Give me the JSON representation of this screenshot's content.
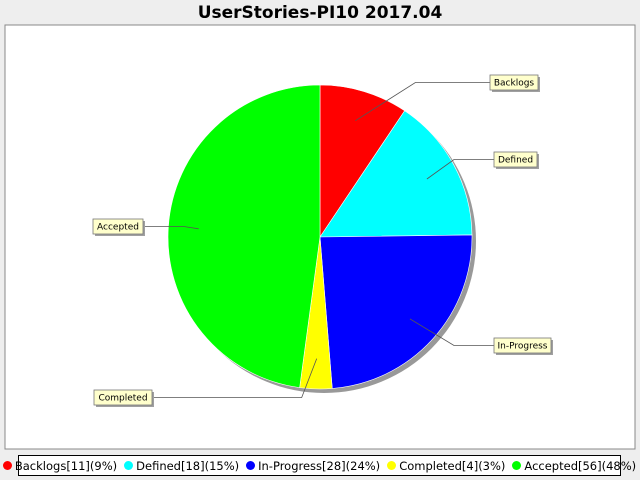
{
  "chart_data": {
    "type": "pie",
    "title": "UserStories-PI10 2017.04",
    "slices": [
      {
        "name": "Backlogs",
        "value": 11,
        "percent": 9,
        "color": "#ff0000",
        "legend_label": "Backlogs[11](9%)"
      },
      {
        "name": "Defined",
        "value": 18,
        "percent": 15,
        "color": "#00ffff",
        "legend_label": "Defined[18](15%)"
      },
      {
        "name": "In-Progress",
        "value": 28,
        "percent": 24,
        "color": "#0000ff",
        "legend_label": "In-Progress[28](24%)"
      },
      {
        "name": "Completed",
        "value": 4,
        "percent": 3,
        "color": "#ffff00",
        "legend_label": "Completed[4](3%)"
      },
      {
        "name": "Accepted",
        "value": 56,
        "percent": 48,
        "color": "#00ff00",
        "legend_label": "Accepted[56](48%)"
      }
    ],
    "start": "top",
    "direction": "clockwise",
    "legend_position": "bottom"
  }
}
